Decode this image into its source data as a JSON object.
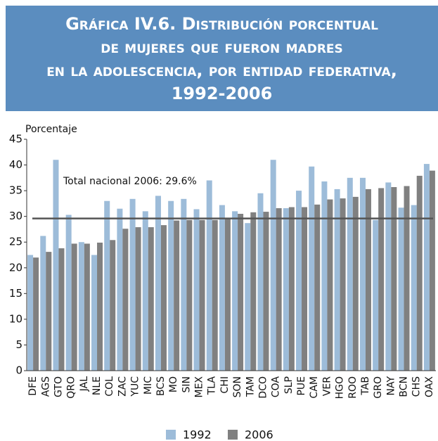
{
  "chart_data": {
    "type": "bar",
    "title": [
      "Gráfica IV.6. Distribución porcentual",
      "de mujeres que fueron madres",
      "en la adolescencia, por entidad federativa,",
      "1992-2006"
    ],
    "y_label": "Porcentaje",
    "categories": [
      "DFE",
      "AGS",
      "GTO",
      "QRO",
      "JAL",
      "NLE",
      "COL",
      "ZAC",
      "YUC",
      "MIC",
      "BCS",
      "MO",
      "SIN",
      "MEX",
      "TLA",
      "CHI",
      "SON",
      "TAM",
      "DCO",
      "COA",
      "SLP",
      "PUE",
      "CAM",
      "VER",
      "HGO",
      "ROO",
      "TAB",
      "GRO",
      "NAY",
      "BCN",
      "CHS",
      "OAX"
    ],
    "series": [
      {
        "name": "1992",
        "color": "#9dbcd9",
        "values": [
          22.5,
          26.2,
          41,
          30.3,
          25,
          22.5,
          33,
          31.5,
          33.4,
          31,
          34,
          33,
          33.4,
          31.4,
          37,
          32.2,
          31,
          28.7,
          34.5,
          41,
          31.6,
          35,
          39.7,
          36.8,
          35.3,
          37.5,
          37.5,
          29.3,
          36.6,
          31.7,
          32.2,
          40.2
        ]
      },
      {
        "name": "2006",
        "color": "#808080",
        "values": [
          22,
          23.1,
          23.8,
          24.7,
          24.7,
          24.9,
          25.4,
          27.6,
          27.9,
          27.9,
          28.3,
          29.2,
          29.3,
          29.3,
          29.3,
          29.7,
          30.5,
          30.8,
          30.9,
          31.6,
          31.8,
          31.8,
          32.3,
          33.3,
          33.5,
          33.8,
          35.3,
          35.5,
          35.7,
          35.9,
          37.9,
          38.9
        ]
      }
    ],
    "reference": {
      "value": 29.6,
      "label": "Total nacional 2006: 29.6%",
      "color": "#555555"
    },
    "ylim": [
      0,
      45
    ],
    "yticks": [
      0,
      5,
      10,
      15,
      20,
      25,
      30,
      35,
      40,
      45
    ],
    "grid": false,
    "legend": "bottom"
  }
}
